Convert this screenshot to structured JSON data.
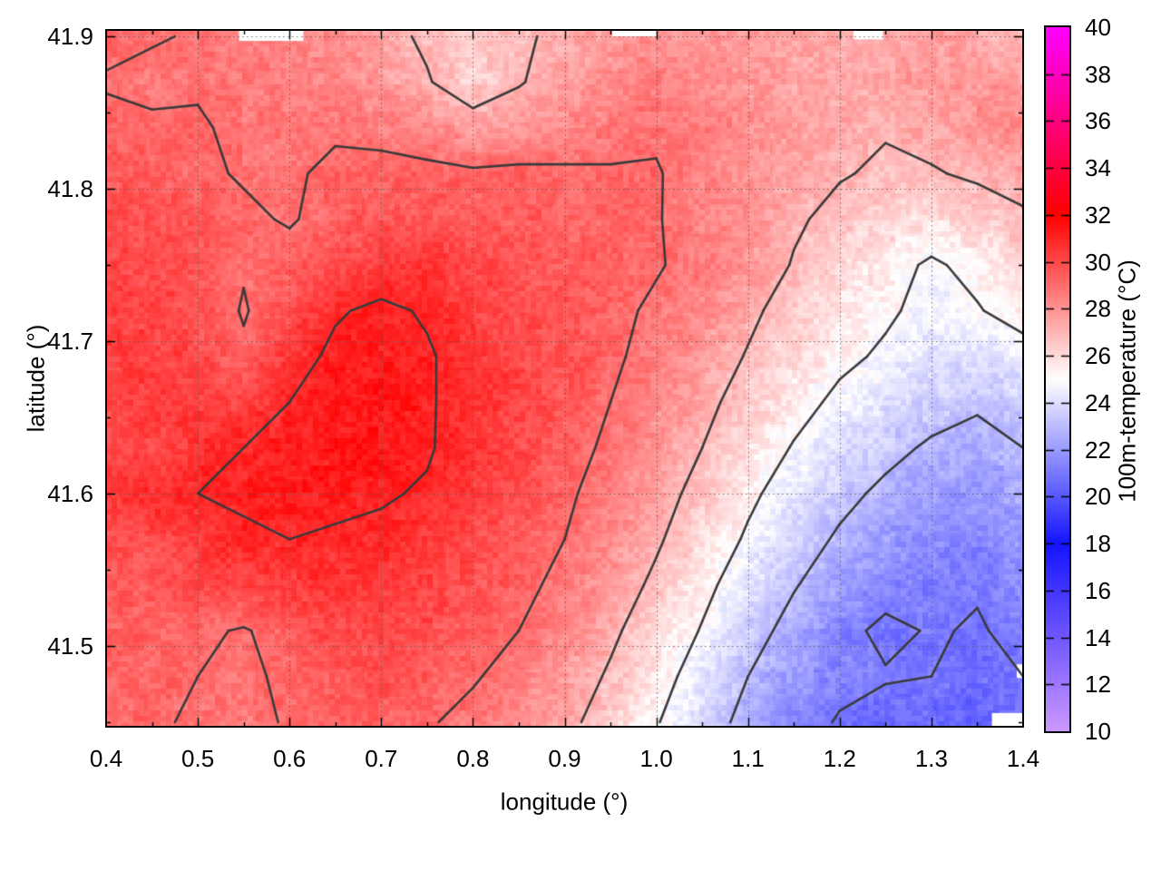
{
  "figure": {
    "background": "#ffffff"
  },
  "axes": {
    "x": {
      "label": "longitude (°)",
      "range": [
        0.4,
        1.4
      ],
      "major_ticks": [
        0.4,
        0.5,
        0.6,
        0.7,
        0.8,
        0.9,
        1.0,
        1.1,
        1.2,
        1.3,
        1.4
      ],
      "tick_labels": [
        "0.4",
        "0.5",
        "0.6",
        "0.7",
        "0.8",
        "0.9",
        "1.0",
        "1.1",
        "1.2",
        "1.3",
        "1.4"
      ],
      "minor_ticks": [
        0.45,
        0.55,
        0.65,
        0.75,
        0.85,
        0.95,
        1.05,
        1.15,
        1.25,
        1.35
      ]
    },
    "y": {
      "label": "latitude (°)",
      "range": [
        41.447,
        41.904
      ],
      "major_ticks": [
        41.5,
        41.6,
        41.7,
        41.8,
        41.9
      ],
      "tick_labels": [
        "41.5",
        "41.6",
        "41.7",
        "41.8",
        "41.9"
      ],
      "minor_ticks": [
        41.45,
        41.55,
        41.65,
        41.75,
        41.85
      ]
    },
    "grid_style": "dotted"
  },
  "colorbar": {
    "label": "100m-temperature (°C)",
    "range": [
      10,
      40
    ],
    "tick_values": [
      40,
      38,
      36,
      34,
      32,
      30,
      28,
      26,
      24,
      22,
      20,
      18,
      16,
      14,
      12,
      10
    ],
    "tick_labels": [
      "40",
      "38",
      "36",
      "34",
      "32",
      "30",
      "28",
      "26",
      "24",
      "22",
      "20",
      "18",
      "16",
      "14",
      "12",
      "10"
    ],
    "palette_stops": [
      [
        10,
        "#cc99ff"
      ],
      [
        18,
        "#1414ff"
      ],
      [
        25,
        "#ffffff"
      ],
      [
        32,
        "#ff0000"
      ],
      [
        40,
        "#ff00ff"
      ]
    ]
  },
  "chart_data": {
    "type": "heatmap",
    "title": "",
    "xlabel": "longitude (°)",
    "ylabel": "latitude (°)",
    "zlabel": "100m-temperature (°C)",
    "zlim": [
      10,
      40
    ],
    "x_values": [
      0.4,
      0.45,
      0.5,
      0.55,
      0.6,
      0.65,
      0.7,
      0.75,
      0.8,
      0.85,
      0.9,
      0.95,
      1.0,
      1.05,
      1.1,
      1.15,
      1.2,
      1.25,
      1.3,
      1.35,
      1.4
    ],
    "y_values": [
      41.9,
      41.87,
      41.84,
      41.81,
      41.78,
      41.75,
      41.72,
      41.69,
      41.66,
      41.63,
      41.6,
      41.57,
      41.54,
      41.51,
      41.48,
      41.45
    ],
    "values_c": [
      [
        29.3,
        29.1,
        28.9,
        28.5,
        28.3,
        28.1,
        27.4,
        26.8,
        26.4,
        26.8,
        27.3,
        27.8,
        28.1,
        27.9,
        27.7,
        27.5,
        27.2,
        27.4,
        27.6,
        27.3,
        27.1
      ],
      [
        28.9,
        28.7,
        28.9,
        28.7,
        28.5,
        28.4,
        27.8,
        27.1,
        26.2,
        26.9,
        27.6,
        28.2,
        28.5,
        28.2,
        27.9,
        27.6,
        27.3,
        27.5,
        27.8,
        28.0,
        27.4
      ],
      [
        29.3,
        29.2,
        29.1,
        28.8,
        28.7,
        28.8,
        28.6,
        28.3,
        27.6,
        27.8,
        28.2,
        28.6,
        28.8,
        28.5,
        28.1,
        27.7,
        27.3,
        27.1,
        27.4,
        28.1,
        28.3
      ],
      [
        29.6,
        29.5,
        29.2,
        28.9,
        28.8,
        29.3,
        29.4,
        29.3,
        29.2,
        29.3,
        29.2,
        29.1,
        29.1,
        28.4,
        28.0,
        27.5,
        27.1,
        26.8,
        26.9,
        27.2,
        27.5
      ],
      [
        29.9,
        29.8,
        29.6,
        29.2,
        28.9,
        29.4,
        29.6,
        29.6,
        29.4,
        29.5,
        29.3,
        29.2,
        29.1,
        28.3,
        28.2,
        27.2,
        26.6,
        26.2,
        25.9,
        26.3,
        26.8
      ],
      [
        30.1,
        30.0,
        29.7,
        29.1,
        29.4,
        29.9,
        30.4,
        30.6,
        30.0,
        29.7,
        29.5,
        29.3,
        29.1,
        28.6,
        27.9,
        26.9,
        26.1,
        25.5,
        24.8,
        25.4,
        26.2
      ],
      [
        30.2,
        30.1,
        29.8,
        28.9,
        29.8,
        30.9,
        31.2,
        30.9,
        30.3,
        29.9,
        29.6,
        29.3,
        28.8,
        28.2,
        27.3,
        26.4,
        25.7,
        25.2,
        24.6,
        24.9,
        25.6
      ],
      [
        30.2,
        30.3,
        30.0,
        29.2,
        30.6,
        31.2,
        31.3,
        31.1,
        30.6,
        30.0,
        29.7,
        29.2,
        28.6,
        27.8,
        26.9,
        26.0,
        25.3,
        24.8,
        24.3,
        24.0,
        24.4
      ],
      [
        30.1,
        30.3,
        30.4,
        30.2,
        31.0,
        31.3,
        31.4,
        31.1,
        30.6,
        30.1,
        29.6,
        29.0,
        28.3,
        27.4,
        26.4,
        25.5,
        24.7,
        24.2,
        23.6,
        23.2,
        23.6
      ],
      [
        29.9,
        30.1,
        30.6,
        31.0,
        31.2,
        31.3,
        31.4,
        31.1,
        30.5,
        30.0,
        29.4,
        28.8,
        28.0,
        27.0,
        25.9,
        24.9,
        24.1,
        23.4,
        22.8,
        22.5,
        23.0
      ],
      [
        30.4,
        30.8,
        31.0,
        31.1,
        31.2,
        31.2,
        31.1,
        30.9,
        30.3,
        29.8,
        29.2,
        28.5,
        27.6,
        26.5,
        25.3,
        24.3,
        23.4,
        22.7,
        22.1,
        21.9,
        22.4
      ],
      [
        29.6,
        29.9,
        30.4,
        30.9,
        31.0,
        30.9,
        30.8,
        30.4,
        30.0,
        29.6,
        29.0,
        28.2,
        27.2,
        26.0,
        24.8,
        23.7,
        22.8,
        22.1,
        21.6,
        21.4,
        21.9
      ],
      [
        29.4,
        29.6,
        29.9,
        30.2,
        30.4,
        30.5,
        30.4,
        30.1,
        29.8,
        29.3,
        28.7,
        27.8,
        26.7,
        25.4,
        24.2,
        23.1,
        22.2,
        21.5,
        21.2,
        21.1,
        21.6
      ],
      [
        29.3,
        29.4,
        29.2,
        28.9,
        29.5,
        29.9,
        30.1,
        29.9,
        29.5,
        29.0,
        28.3,
        27.3,
        26.1,
        24.9,
        23.6,
        22.5,
        21.4,
        20.7,
        21.1,
        20.9,
        21.3
      ],
      [
        29.2,
        29.2,
        29.0,
        28.8,
        29.2,
        29.6,
        29.8,
        29.5,
        29.1,
        28.6,
        27.9,
        26.8,
        25.6,
        24.3,
        23.0,
        21.9,
        21.3,
        21.1,
        21.0,
        20.6,
        21.0
      ],
      [
        29.2,
        29.1,
        28.9,
        28.7,
        29.1,
        29.3,
        29.4,
        29.1,
        28.7,
        28.2,
        27.4,
        26.3,
        25.1,
        23.8,
        22.5,
        21.5,
        20.9,
        20.5,
        20.6,
        20.3,
        20.7
      ]
    ],
    "contour_levels": [
      21,
      23,
      25,
      27,
      29,
      31
    ],
    "contour_color": "#3a3a3a",
    "missing_regions": [
      {
        "lon": [
          0.545,
          0.615
        ],
        "lat": [
          41.897,
          41.905
        ]
      },
      {
        "lon": [
          0.952,
          1.0
        ],
        "lat": [
          41.9,
          41.905
        ]
      },
      {
        "lon": [
          1.215,
          1.247
        ],
        "lat": [
          41.898,
          41.905
        ]
      },
      {
        "lon": [
          1.366,
          1.4
        ],
        "lat": [
          41.446,
          41.456
        ]
      },
      {
        "lon": [
          1.393,
          1.4
        ],
        "lat": [
          41.479,
          41.488
        ]
      }
    ]
  }
}
